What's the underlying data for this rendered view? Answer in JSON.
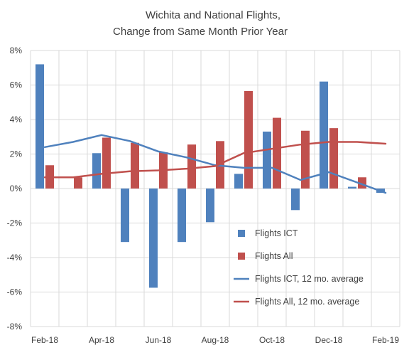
{
  "chart_data": {
    "type": "bar",
    "title_line1": "Wichita and National Flights,",
    "title_line2": "Change from Same Month Prior Year",
    "x": [
      "Feb-18",
      "Mar-18",
      "Apr-18",
      "May-18",
      "Jun-18",
      "Jul-18",
      "Aug-18",
      "Sep-18",
      "Oct-18",
      "Nov-18",
      "Dec-18",
      "Jan-19",
      "Feb-19"
    ],
    "xtick_labels": [
      "Feb-18",
      "Apr-18",
      "Jun-18",
      "Aug-18",
      "Oct-18",
      "Dec-18",
      "Feb-19"
    ],
    "ylim": [
      -8,
      8
    ],
    "yticks": [
      8,
      6,
      4,
      2,
      0,
      -2,
      -4,
      -6,
      -8
    ],
    "ytick_labels": [
      "8%",
      "6%",
      "4%",
      "2%",
      "0%",
      "-2%",
      "-4%",
      "-6%",
      "-8%"
    ],
    "grid": true,
    "legend_position": "bottom-right",
    "series": [
      {
        "name": "Flights ICT",
        "kind": "bar",
        "color": "#4F81BD",
        "values": [
          7.2,
          0.0,
          2.05,
          -3.1,
          -5.75,
          -3.1,
          -1.95,
          0.85,
          3.3,
          -1.25,
          6.2,
          0.1,
          -0.25
        ]
      },
      {
        "name": "Flights All",
        "kind": "bar",
        "color": "#C0504D",
        "values": [
          1.35,
          0.65,
          2.95,
          2.65,
          2.1,
          2.55,
          2.75,
          5.65,
          4.1,
          3.35,
          3.5,
          0.65,
          0.0
        ]
      },
      {
        "name": "Flights ICT, 12 mo. average",
        "kind": "line",
        "color": "#4F81BD",
        "values": [
          2.4,
          2.7,
          3.1,
          2.75,
          2.15,
          1.8,
          1.35,
          1.2,
          1.2,
          0.5,
          0.95,
          0.35,
          -0.25
        ]
      },
      {
        "name": "Flights All, 12 mo. average",
        "kind": "line",
        "color": "#C0504D",
        "values": [
          0.65,
          0.65,
          0.85,
          1.0,
          1.05,
          1.15,
          1.3,
          2.05,
          2.3,
          2.55,
          2.7,
          2.7,
          2.6
        ]
      }
    ]
  }
}
